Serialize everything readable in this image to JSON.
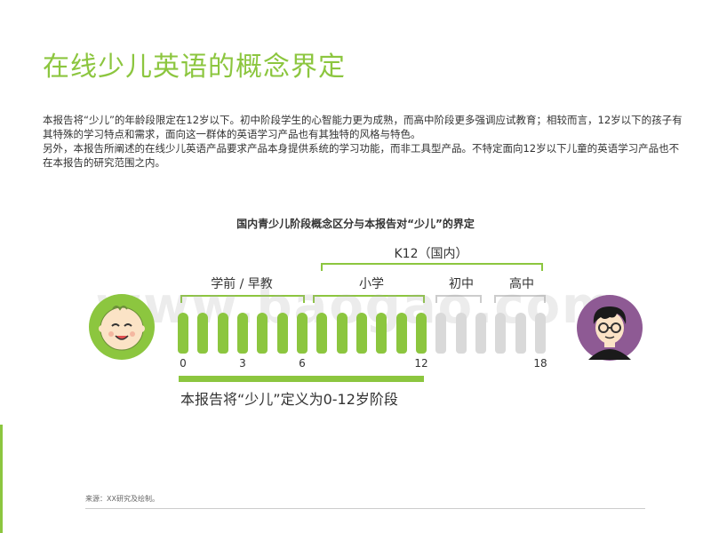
{
  "header": {
    "title": "在线少儿英语的概念界定"
  },
  "body": {
    "paragraph1": "本报告将“少儿”的年龄段限定在12岁以下。初中阶段学生的心智能力更为成熟，而高中阶段更多强调应试教育；相较而言，12岁以下的孩子有其特殊的学习特点和需求，面向这一群体的英语学习产品也有其独特的风格与特色。",
    "paragraph2": "另外，本报告所阐述的在线少儿英语产品要求产品本身提供系统的学习功能，而非工具型产品。不特定面向12岁以下儿童的英语学习产品也不在本报告的研究范围之内。"
  },
  "diagram": {
    "title": "国内青少儿阶段概念区分与本报告对“少儿”的界定",
    "k12_label": "K12（国内）",
    "stages": {
      "preschool": "学前 / 早教",
      "primary": "小学",
      "junior": "初中",
      "senior": "高中"
    },
    "ticks": {
      "t0": "0",
      "t3": "3",
      "t6": "6",
      "t12": "12",
      "t18": "18"
    },
    "definition": "本报告将“少儿”定义为0-12岁阶段",
    "age_range": {
      "min": 0,
      "max": 18,
      "child_max": 12
    },
    "colors": {
      "accent": "#8cc63f",
      "inactive": "#d9d9d9",
      "adult_bg": "#8e5a94",
      "child_bg": "#8cc63f"
    }
  },
  "watermark": "www.baogao.com",
  "footer": {
    "source": "来源：XX研究及绘制。"
  }
}
